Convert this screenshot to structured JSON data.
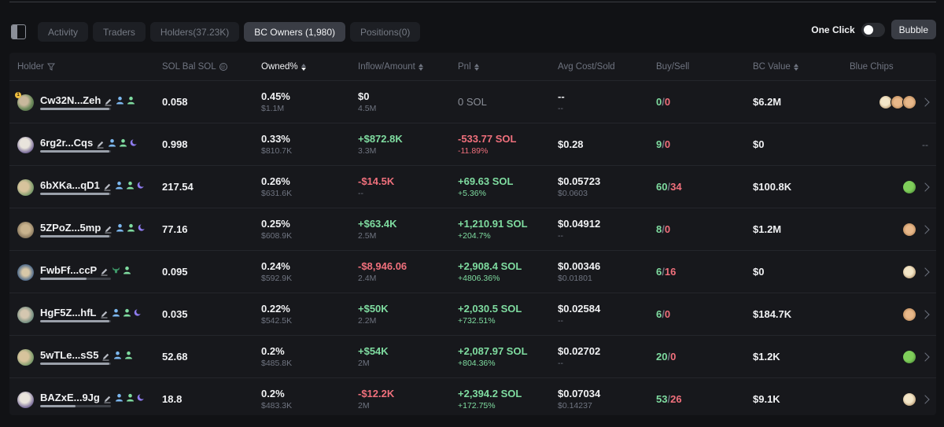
{
  "tabs": [
    {
      "label": "Activity",
      "active": false
    },
    {
      "label": "Traders",
      "active": false
    },
    {
      "label": "Holders(37.23K)",
      "active": false
    },
    {
      "label": "BC Owners (1,980)",
      "active": true
    },
    {
      "label": "Positions(0)",
      "active": false
    }
  ],
  "controls": {
    "one_click_label": "One Click",
    "one_click_enabled": false,
    "bubble_label": "Bubble"
  },
  "columns": [
    "Holder",
    "SOL Bal SOL",
    "Owned%",
    "Inflow/Amount",
    "Pnl",
    "Avg Cost/Sold",
    "Buy/Sell",
    "BC Value",
    "Blue Chips"
  ],
  "rows": [
    {
      "name": "Cw32N...Zeh",
      "badge": "1",
      "bar": 0.98,
      "tags": [
        "user-icon",
        "user-green-icon"
      ],
      "sol_bal": "0.058",
      "owned": "0.45%",
      "owned_sub": "$1.1M",
      "inflow": "$0",
      "inflow_sub": "4.5M",
      "pnl": "0 SOL",
      "pnl_sub": "",
      "avg": "--",
      "avg_sub": "--",
      "buy": "0",
      "sell": "0",
      "bc_value": "$6.2M",
      "chips": [
        "dog",
        "shib",
        "shib"
      ]
    },
    {
      "name": "6rg2r...Cqs",
      "badge": "",
      "bar": 0.98,
      "tags": [
        "user-icon",
        "user-green-icon",
        "moon-icon"
      ],
      "sol_bal": "0.998",
      "owned": "0.33%",
      "owned_sub": "$810.7K",
      "inflow": "+$872.8K",
      "inflow_sub": "3.3M",
      "pnl": "-533.77 SOL",
      "pnl_sub": "-11.89%",
      "avg": "$0.28",
      "avg_sub": "",
      "buy": "9",
      "sell": "0",
      "bc_value": "$0",
      "chips": [],
      "chips_empty": "--"
    },
    {
      "name": "6bXKa...qD1",
      "badge": "",
      "bar": 0.98,
      "tags": [
        "user-icon",
        "user-green-icon",
        "moon-icon"
      ],
      "sol_bal": "217.54",
      "owned": "0.26%",
      "owned_sub": "$631.6K",
      "inflow": "-$14.5K",
      "inflow_sub": "--",
      "pnl": "+69.63 SOL",
      "pnl_sub": "+5.36%",
      "avg": "$0.05723",
      "avg_sub": "$0.0603",
      "buy": "60",
      "sell": "34",
      "bc_value": "$100.8K",
      "chips": [
        "pepe"
      ]
    },
    {
      "name": "5ZPoZ...5mp",
      "badge": "",
      "bar": 0.98,
      "tags": [
        "user-icon",
        "user-green-icon",
        "moon-icon"
      ],
      "sol_bal": "77.16",
      "owned": "0.25%",
      "owned_sub": "$608.9K",
      "inflow": "+$63.4K",
      "inflow_sub": "2.5M",
      "pnl": "+1,210.91 SOL",
      "pnl_sub": "+204.7%",
      "avg": "$0.04912",
      "avg_sub": "--",
      "buy": "8",
      "sell": "0",
      "bc_value": "$1.2M",
      "chips": [
        "shib"
      ]
    },
    {
      "name": "FwbFf...ccP",
      "badge": "",
      "bar": 0.66,
      "tags": [
        "bull-icon",
        "user-green-icon"
      ],
      "sol_bal": "0.095",
      "owned": "0.24%",
      "owned_sub": "$592.9K",
      "inflow": "-$8,946.06",
      "inflow_sub": "2.4M",
      "pnl": "+2,908.4 SOL",
      "pnl_sub": "+4806.36%",
      "avg": "$0.00346",
      "avg_sub": "$0.01801",
      "buy": "6",
      "sell": "16",
      "bc_value": "$0",
      "chips": [
        "dog"
      ]
    },
    {
      "name": "HgF5Z...hfL",
      "badge": "",
      "bar": 0.98,
      "tags": [
        "user-icon",
        "user-green-icon",
        "moon-icon"
      ],
      "sol_bal": "0.035",
      "owned": "0.22%",
      "owned_sub": "$542.5K",
      "inflow": "+$50K",
      "inflow_sub": "2.2M",
      "pnl": "+2,030.5 SOL",
      "pnl_sub": "+732.51%",
      "avg": "$0.02584",
      "avg_sub": "--",
      "buy": "6",
      "sell": "0",
      "bc_value": "$184.7K",
      "chips": [
        "shib"
      ]
    },
    {
      "name": "5wTLe...sS5",
      "badge": "",
      "bar": 0.98,
      "tags": [
        "user-icon",
        "user-green-icon"
      ],
      "sol_bal": "52.68",
      "owned": "0.2%",
      "owned_sub": "$485.8K",
      "inflow": "+$54K",
      "inflow_sub": "2M",
      "pnl": "+2,087.97 SOL",
      "pnl_sub": "+804.36%",
      "avg": "$0.02702",
      "avg_sub": "--",
      "buy": "20",
      "sell": "0",
      "bc_value": "$1.2K",
      "chips": [
        "pepe"
      ]
    },
    {
      "name": "BAZxE...9Jg",
      "badge": "",
      "bar": 0.5,
      "tags": [
        "user-icon",
        "user-green-icon",
        "moon-icon"
      ],
      "sol_bal": "18.8",
      "owned": "0.2%",
      "owned_sub": "$483.3K",
      "inflow": "-$12.2K",
      "inflow_sub": "2M",
      "pnl": "+2,394.2 SOL",
      "pnl_sub": "+172.75%",
      "avg": "$0.07034",
      "avg_sub": "$0.14237",
      "buy": "53",
      "sell": "26",
      "bc_value": "$9.1K",
      "chips": [
        "dog"
      ]
    }
  ],
  "colors": {
    "positive": "#7fdca0",
    "negative": "#f0707c",
    "tag_blue": "#7db8f0",
    "tag_green": "#7fdca0",
    "tag_purple": "#8f7cf0"
  }
}
